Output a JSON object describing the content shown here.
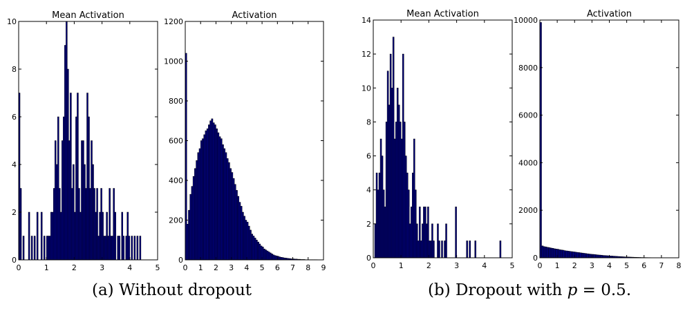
{
  "captions": {
    "a": "(a) Without dropout",
    "b_prefix": "(b) Dropout with ",
    "b_var": "p",
    "b_suffix": " = 0.5."
  },
  "colors": {
    "bar_fill": "#00007f",
    "bar_edge": "#000000",
    "axis": "#000000"
  },
  "chart_data": [
    {
      "type": "bar",
      "title": "Mean Activation",
      "panel": "a",
      "xlim": [
        0,
        5
      ],
      "ylim": [
        0,
        10
      ],
      "xticks": [
        0,
        1,
        2,
        3,
        4,
        5
      ],
      "yticks": [
        0,
        2,
        4,
        6,
        8,
        10
      ],
      "bin_width": 0.05,
      "x": [
        0.0,
        0.05,
        0.15,
        0.35,
        0.45,
        0.55,
        0.65,
        0.8,
        0.9,
        1.0,
        1.05,
        1.1,
        1.15,
        1.2,
        1.25,
        1.3,
        1.35,
        1.4,
        1.45,
        1.5,
        1.55,
        1.6,
        1.65,
        1.7,
        1.75,
        1.8,
        1.85,
        1.9,
        1.95,
        2.0,
        2.05,
        2.1,
        2.15,
        2.2,
        2.25,
        2.3,
        2.35,
        2.4,
        2.45,
        2.5,
        2.55,
        2.6,
        2.65,
        2.7,
        2.75,
        2.8,
        2.85,
        2.9,
        2.95,
        3.0,
        3.05,
        3.1,
        3.15,
        3.2,
        3.25,
        3.3,
        3.35,
        3.4,
        3.45,
        3.55,
        3.6,
        3.7,
        3.75,
        3.85,
        3.9,
        3.95,
        4.05,
        4.15,
        4.25,
        4.35
      ],
      "values": [
        7,
        3,
        1,
        2,
        1,
        1,
        2,
        2,
        1,
        1,
        1,
        1,
        2,
        2,
        3,
        5,
        4,
        6,
        3,
        2,
        5,
        6,
        9,
        10,
        8,
        5,
        7,
        3,
        4,
        2,
        6,
        7,
        3,
        2,
        5,
        5,
        4,
        3,
        7,
        6,
        3,
        5,
        4,
        3,
        2,
        3,
        1,
        2,
        3,
        2,
        1,
        1,
        2,
        1,
        3,
        1,
        1,
        3,
        2,
        1,
        1,
        2,
        1,
        1,
        2,
        1,
        1,
        1,
        1,
        1
      ]
    },
    {
      "type": "bar",
      "title": "Activation",
      "panel": "a",
      "xlim": [
        0,
        9
      ],
      "ylim": [
        0,
        1200
      ],
      "xticks": [
        0,
        1,
        2,
        3,
        4,
        5,
        6,
        7,
        8,
        9
      ],
      "yticks": [
        0,
        200,
        400,
        600,
        800,
        1000,
        1200
      ],
      "bin_width": 0.1,
      "x": [
        0.0,
        0.1,
        0.2,
        0.3,
        0.4,
        0.5,
        0.6,
        0.7,
        0.8,
        0.9,
        1.0,
        1.1,
        1.2,
        1.3,
        1.4,
        1.5,
        1.6,
        1.7,
        1.8,
        1.9,
        2.0,
        2.1,
        2.2,
        2.3,
        2.4,
        2.5,
        2.6,
        2.7,
        2.8,
        2.9,
        3.0,
        3.1,
        3.2,
        3.3,
        3.4,
        3.5,
        3.6,
        3.7,
        3.8,
        3.9,
        4.0,
        4.1,
        4.2,
        4.3,
        4.4,
        4.5,
        4.6,
        4.7,
        4.8,
        4.9,
        5.0,
        5.1,
        5.2,
        5.3,
        5.4,
        5.5,
        5.6,
        5.7,
        5.8,
        5.9,
        6.0,
        6.1,
        6.2,
        6.3,
        6.4,
        6.5,
        6.6,
        6.7,
        6.8,
        6.9,
        7.0,
        7.1,
        7.2,
        7.3,
        7.4,
        7.5,
        7.6,
        7.7,
        7.8,
        7.9,
        8.0,
        8.1,
        8.2,
        8.3,
        8.4,
        8.5
      ],
      "values": [
        1040,
        180,
        250,
        330,
        370,
        420,
        460,
        500,
        540,
        560,
        600,
        610,
        630,
        650,
        660,
        680,
        700,
        710,
        690,
        680,
        660,
        640,
        620,
        610,
        580,
        560,
        540,
        510,
        490,
        460,
        440,
        410,
        380,
        350,
        320,
        290,
        270,
        240,
        220,
        200,
        190,
        170,
        150,
        130,
        120,
        110,
        100,
        90,
        80,
        70,
        65,
        55,
        50,
        45,
        40,
        35,
        30,
        25,
        22,
        20,
        18,
        15,
        13,
        12,
        10,
        9,
        8,
        7,
        6,
        5,
        5,
        4,
        4,
        3,
        3,
        2,
        2,
        2,
        1,
        1,
        1,
        1,
        1,
        1,
        1,
        1
      ]
    },
    {
      "type": "bar",
      "title": "Mean Activation",
      "panel": "b",
      "xlim": [
        0,
        5
      ],
      "ylim": [
        0,
        14
      ],
      "xticks": [
        0,
        1,
        2,
        3,
        4,
        5
      ],
      "yticks": [
        0,
        2,
        4,
        6,
        8,
        10,
        12,
        14
      ],
      "bin_width": 0.05,
      "x": [
        0.05,
        0.1,
        0.15,
        0.2,
        0.25,
        0.3,
        0.35,
        0.4,
        0.45,
        0.5,
        0.55,
        0.6,
        0.65,
        0.7,
        0.75,
        0.8,
        0.85,
        0.9,
        0.95,
        1.0,
        1.05,
        1.1,
        1.15,
        1.2,
        1.25,
        1.3,
        1.35,
        1.4,
        1.45,
        1.5,
        1.55,
        1.6,
        1.65,
        1.7,
        1.75,
        1.8,
        1.85,
        1.9,
        1.95,
        2.0,
        2.05,
        2.1,
        2.15,
        2.3,
        2.35,
        2.45,
        2.55,
        2.6,
        2.95,
        3.35,
        3.45,
        3.65,
        4.55
      ],
      "values": [
        2,
        5,
        4,
        5,
        7,
        6,
        4,
        3,
        8,
        11,
        9,
        12,
        10,
        13,
        7,
        8,
        10,
        9,
        8,
        7,
        12,
        8,
        6,
        5,
        4,
        2,
        3,
        5,
        7,
        4,
        2,
        1,
        3,
        1,
        2,
        3,
        3,
        2,
        3,
        1,
        1,
        2,
        1,
        2,
        1,
        1,
        1,
        2,
        3,
        1,
        1,
        1,
        1
      ]
    },
    {
      "type": "bar",
      "title": "Activation",
      "panel": "b",
      "xlim": [
        0,
        8
      ],
      "ylim": [
        0,
        10000
      ],
      "xticks": [
        0,
        1,
        2,
        3,
        4,
        5,
        6,
        7,
        8
      ],
      "yticks": [
        0,
        2000,
        4000,
        6000,
        8000,
        10000
      ],
      "bin_width": 0.1,
      "x": [
        0.0,
        0.1,
        0.2,
        0.3,
        0.4,
        0.5,
        0.6,
        0.7,
        0.8,
        0.9,
        1.0,
        1.1,
        1.2,
        1.3,
        1.4,
        1.5,
        1.6,
        1.7,
        1.8,
        1.9,
        2.0,
        2.1,
        2.2,
        2.3,
        2.4,
        2.5,
        2.6,
        2.7,
        2.8,
        2.9,
        3.0,
        3.1,
        3.2,
        3.3,
        3.4,
        3.5,
        3.6,
        3.7,
        3.8,
        3.9,
        4.0,
        4.1,
        4.2,
        4.3,
        4.4,
        4.5,
        4.6,
        4.7,
        4.8,
        4.9,
        5.0,
        5.1,
        5.2,
        5.3,
        5.4,
        5.5,
        5.6,
        5.7,
        5.8,
        5.9,
        6.0,
        6.1,
        6.2,
        6.3,
        6.4,
        6.5,
        6.6,
        6.7,
        6.8,
        6.9,
        7.0,
        7.1,
        7.2,
        7.3,
        7.4,
        7.5
      ],
      "values": [
        9900,
        500,
        470,
        460,
        440,
        430,
        410,
        400,
        380,
        370,
        360,
        340,
        330,
        320,
        300,
        290,
        280,
        270,
        260,
        250,
        240,
        230,
        220,
        210,
        200,
        190,
        180,
        170,
        160,
        150,
        145,
        140,
        130,
        120,
        115,
        110,
        100,
        95,
        90,
        85,
        80,
        75,
        70,
        65,
        60,
        55,
        50,
        46,
        42,
        38,
        35,
        32,
        29,
        26,
        23,
        20,
        18,
        16,
        14,
        12,
        11,
        10,
        9,
        8,
        7,
        6,
        5,
        5,
        4,
        4,
        3,
        3,
        2,
        2,
        1,
        1
      ]
    }
  ]
}
